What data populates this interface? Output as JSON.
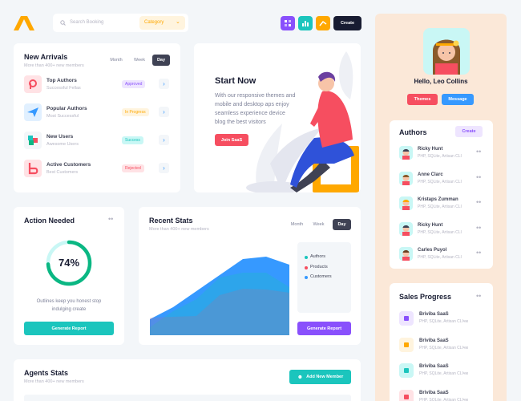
{
  "header": {
    "search_placeholder": "Search Booking",
    "category": "Category",
    "create_button": "Create"
  },
  "new_arrivals": {
    "title": "New Arrivals",
    "subtitle": "More than 400+ new members",
    "tabs": [
      "Month",
      "Week",
      "Day"
    ],
    "items": [
      {
        "title": "Top Authors",
        "subtitle": "Successful Fellas",
        "status": "Approved"
      },
      {
        "title": "Popular Authors",
        "subtitle": "Most Successful",
        "status": "In Progress"
      },
      {
        "title": "New Users",
        "subtitle": "Awesome Users",
        "status": "Success"
      },
      {
        "title": "Active Customers",
        "subtitle": "Best Customers",
        "status": "Rejected"
      }
    ]
  },
  "start_now": {
    "title": "Start Now",
    "text": [
      "With our responsive themes and",
      "mobile and desktop aps enjoy",
      "seamless experience device",
      "blog the best visitors"
    ],
    "button": "Join SaaS"
  },
  "action_needed": {
    "title": "Action Needed",
    "progress": {
      "value": 74,
      "label": "74%"
    },
    "text": [
      "Outlines keep you honest stop",
      "indulging create"
    ],
    "button": "Generate Report"
  },
  "recent_stats": {
    "title": "Recent Stats",
    "subtitle": "More than 400+ new members",
    "tabs": [
      "Month",
      "Week",
      "Day"
    ],
    "button": "Generate Report",
    "chart": {
      "type": "area",
      "series": [
        {
          "name": "Authors",
          "color": "#1bc5bd",
          "values": [
            10,
            30,
            45,
            72,
            78,
            78,
            60
          ]
        },
        {
          "name": "Products",
          "color": "#f64e60",
          "values": [
            22,
            23,
            24,
            50,
            58,
            57,
            53
          ]
        },
        {
          "name": "Customers",
          "color": "#3699ff",
          "values": [
            20,
            35,
            55,
            75,
            95,
            98,
            88
          ]
        }
      ]
    }
  },
  "agents_stats": {
    "title": "Agents Stats",
    "subtitle": "More than 400+ new members",
    "button": "Add New Member"
  },
  "profile": {
    "greeting": "Hello, Leo Collins",
    "buttons": [
      "Themes",
      "Message"
    ]
  },
  "authors": {
    "title": "Authors",
    "button": "Create",
    "items": [
      {
        "name": "Ricky Hunt",
        "skills": "PHP, SQLite, Artisan CLI"
      },
      {
        "name": "Anne Clarc",
        "skills": "PHP, SQLite, Artisan CLI"
      },
      {
        "name": "Kristaps Zumman",
        "skills": "PHP, SQLite, Artisan CLI"
      },
      {
        "name": "Ricky Hunt",
        "skills": "PHP, SQLite, Artisan CLI"
      },
      {
        "name": "Carles Puyol",
        "skills": "PHP, SQLite, Artisan CLI"
      }
    ]
  },
  "sales_progress": {
    "title": "Sales Progress",
    "items": [
      {
        "name": "Briviba SaaS",
        "desc": "PHP, SQLite, Artisan CLIчм"
      },
      {
        "name": "Briviba SaaS",
        "desc": "PHP, SQLite, Artisan CLIчм"
      },
      {
        "name": "Briviba SaaS",
        "desc": "PHP, SQLite, Artisan CLIчм"
      },
      {
        "name": "Briviba SaaS",
        "desc": "PHP, SQLite, Artisan CLIчм"
      }
    ]
  }
}
